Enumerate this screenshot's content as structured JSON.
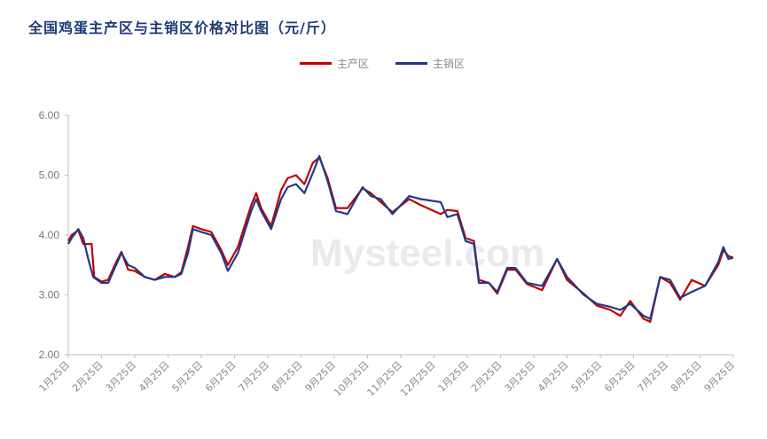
{
  "chart_data": {
    "type": "line",
    "title": "全国鸡蛋主产区与主销区价格对比图（元/斤）",
    "xlabel": "",
    "ylabel": "",
    "ylim": [
      2.0,
      6.0
    ],
    "yticks": [
      "6.00",
      "5.00",
      "4.00",
      "3.00",
      "2.00"
    ],
    "ytick_values": [
      6,
      5,
      4,
      3,
      2
    ],
    "categories": [
      "1月25日",
      "2月25日",
      "3月25日",
      "4月25日",
      "5月25日",
      "6月25日",
      "7月25日",
      "8月25日",
      "9月25日",
      "10月25日",
      "11月25日",
      "12月25日",
      "1月25日",
      "2月25日",
      "3月25日",
      "4月25日",
      "5月25日",
      "6月25日",
      "7月25日",
      "8月25日",
      "9月25日"
    ],
    "legend_position": "top-right",
    "grid": false,
    "watermark": "Mysteel.com",
    "series": [
      {
        "name": "主产区",
        "color": "#c00000",
        "points": [
          [
            0,
            3.9
          ],
          [
            0.1,
            4.0
          ],
          [
            0.3,
            4.08
          ],
          [
            0.45,
            3.85
          ],
          [
            0.7,
            3.85
          ],
          [
            0.78,
            3.3
          ],
          [
            1.0,
            3.22
          ],
          [
            1.2,
            3.25
          ],
          [
            1.4,
            3.5
          ],
          [
            1.6,
            3.72
          ],
          [
            1.8,
            3.42
          ],
          [
            2.0,
            3.4
          ],
          [
            2.3,
            3.3
          ],
          [
            2.6,
            3.25
          ],
          [
            2.9,
            3.35
          ],
          [
            3.2,
            3.3
          ],
          [
            3.4,
            3.38
          ],
          [
            3.6,
            3.8
          ],
          [
            3.75,
            4.15
          ],
          [
            4.0,
            4.1
          ],
          [
            4.3,
            4.05
          ],
          [
            4.6,
            3.75
          ],
          [
            4.8,
            3.5
          ],
          [
            5.1,
            3.8
          ],
          [
            5.5,
            4.5
          ],
          [
            5.65,
            4.7
          ],
          [
            5.8,
            4.45
          ],
          [
            6.1,
            4.15
          ],
          [
            6.4,
            4.75
          ],
          [
            6.6,
            4.95
          ],
          [
            6.85,
            5.0
          ],
          [
            7.1,
            4.85
          ],
          [
            7.35,
            5.2
          ],
          [
            7.55,
            5.3
          ],
          [
            7.8,
            4.95
          ],
          [
            8.05,
            4.45
          ],
          [
            8.4,
            4.45
          ],
          [
            8.85,
            4.78
          ],
          [
            9.1,
            4.7
          ],
          [
            9.4,
            4.55
          ],
          [
            9.75,
            4.38
          ],
          [
            10.25,
            4.6
          ],
          [
            10.6,
            4.5
          ],
          [
            11.0,
            4.4
          ],
          [
            11.2,
            4.35
          ],
          [
            11.4,
            4.42
          ],
          [
            11.7,
            4.4
          ],
          [
            11.95,
            3.95
          ],
          [
            12.2,
            3.9
          ],
          [
            12.35,
            3.25
          ],
          [
            12.65,
            3.2
          ],
          [
            12.9,
            3.02
          ],
          [
            13.2,
            3.42
          ],
          [
            13.45,
            3.42
          ],
          [
            13.8,
            3.18
          ],
          [
            14.25,
            3.08
          ],
          [
            14.7,
            3.6
          ],
          [
            15.0,
            3.25
          ],
          [
            15.5,
            3.02
          ],
          [
            15.9,
            2.82
          ],
          [
            16.3,
            2.75
          ],
          [
            16.6,
            2.65
          ],
          [
            16.9,
            2.9
          ],
          [
            17.3,
            2.6
          ],
          [
            17.5,
            2.55
          ],
          [
            17.8,
            3.3
          ],
          [
            18.1,
            3.2
          ],
          [
            18.4,
            2.92
          ],
          [
            18.75,
            3.25
          ],
          [
            19.15,
            3.15
          ],
          [
            19.55,
            3.5
          ],
          [
            19.7,
            3.75
          ],
          [
            19.85,
            3.65
          ],
          [
            20,
            3.62
          ]
        ]
      },
      {
        "name": "主销区",
        "color": "#1f3a8a",
        "points": [
          [
            0,
            3.85
          ],
          [
            0.1,
            3.95
          ],
          [
            0.3,
            4.1
          ],
          [
            0.45,
            3.95
          ],
          [
            0.6,
            3.6
          ],
          [
            0.75,
            3.3
          ],
          [
            1.0,
            3.2
          ],
          [
            1.2,
            3.2
          ],
          [
            1.4,
            3.45
          ],
          [
            1.6,
            3.7
          ],
          [
            1.8,
            3.5
          ],
          [
            2.0,
            3.45
          ],
          [
            2.3,
            3.3
          ],
          [
            2.6,
            3.25
          ],
          [
            2.9,
            3.3
          ],
          [
            3.2,
            3.3
          ],
          [
            3.4,
            3.35
          ],
          [
            3.6,
            3.7
          ],
          [
            3.75,
            4.1
          ],
          [
            4.0,
            4.05
          ],
          [
            4.3,
            4.0
          ],
          [
            4.6,
            3.7
          ],
          [
            4.8,
            3.4
          ],
          [
            5.1,
            3.7
          ],
          [
            5.5,
            4.4
          ],
          [
            5.65,
            4.6
          ],
          [
            5.8,
            4.4
          ],
          [
            6.1,
            4.1
          ],
          [
            6.4,
            4.6
          ],
          [
            6.6,
            4.8
          ],
          [
            6.85,
            4.85
          ],
          [
            7.1,
            4.7
          ],
          [
            7.4,
            5.1
          ],
          [
            7.55,
            5.32
          ],
          [
            7.8,
            4.9
          ],
          [
            8.05,
            4.4
          ],
          [
            8.4,
            4.35
          ],
          [
            8.85,
            4.8
          ],
          [
            9.1,
            4.65
          ],
          [
            9.4,
            4.6
          ],
          [
            9.75,
            4.35
          ],
          [
            10.25,
            4.65
          ],
          [
            10.6,
            4.6
          ],
          [
            11.2,
            4.55
          ],
          [
            11.4,
            4.3
          ],
          [
            11.7,
            4.35
          ],
          [
            11.95,
            3.9
          ],
          [
            12.2,
            3.85
          ],
          [
            12.35,
            3.2
          ],
          [
            12.65,
            3.2
          ],
          [
            12.9,
            3.05
          ],
          [
            13.2,
            3.45
          ],
          [
            13.45,
            3.45
          ],
          [
            13.8,
            3.2
          ],
          [
            14.25,
            3.15
          ],
          [
            14.7,
            3.6
          ],
          [
            15.0,
            3.3
          ],
          [
            15.5,
            3.0
          ],
          [
            15.9,
            2.85
          ],
          [
            16.3,
            2.8
          ],
          [
            16.6,
            2.75
          ],
          [
            16.9,
            2.85
          ],
          [
            17.3,
            2.65
          ],
          [
            17.5,
            2.6
          ],
          [
            17.8,
            3.3
          ],
          [
            18.1,
            3.25
          ],
          [
            18.4,
            2.95
          ],
          [
            18.75,
            3.05
          ],
          [
            19.15,
            3.15
          ],
          [
            19.55,
            3.55
          ],
          [
            19.7,
            3.8
          ],
          [
            19.85,
            3.6
          ],
          [
            20,
            3.62
          ]
        ]
      }
    ]
  }
}
